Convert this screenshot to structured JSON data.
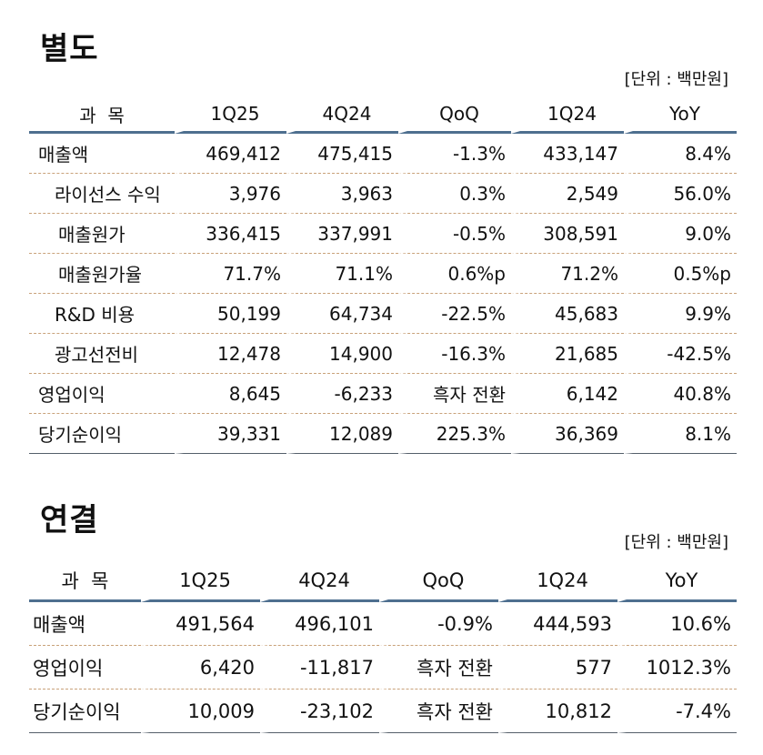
{
  "separate": {
    "title": "별도",
    "unit": "[단위 : 백만원]",
    "headers": [
      "과  목",
      "1Q25",
      "4Q24",
      "QoQ",
      "1Q24",
      "YoY"
    ],
    "rows": [
      {
        "label": "매출액",
        "v1": "469,412",
        "v2": "475,415",
        "qoq": "-1.3%",
        "v3": "433,147",
        "yoy": "8.4%"
      },
      {
        "label": "라이선스 수익",
        "v1": "3,976",
        "v2": "3,963",
        "qoq": "0.3%",
        "v3": "2,549",
        "yoy": "56.0%"
      },
      {
        "label": "매출원가",
        "v1": "336,415",
        "v2": "337,991",
        "qoq": "-0.5%",
        "v3": "308,591",
        "yoy": "9.0%"
      },
      {
        "label": "매출원가율",
        "v1": "71.7%",
        "v2": "71.1%",
        "qoq": "0.6%p",
        "v3": "71.2%",
        "yoy": "0.5%p"
      },
      {
        "label": "R&D 비용",
        "v1": "50,199",
        "v2": "64,734",
        "qoq": "-22.5%",
        "v3": "45,683",
        "yoy": "9.9%"
      },
      {
        "label": "광고선전비",
        "v1": "12,478",
        "v2": "14,900",
        "qoq": "-16.3%",
        "v3": "21,685",
        "yoy": "-42.5%"
      },
      {
        "label": "영업이익",
        "v1": "8,645",
        "v2": "-6,233",
        "qoq": "흑자 전환",
        "v3": "6,142",
        "yoy": "40.8%"
      },
      {
        "label": "당기순이익",
        "v1": "39,331",
        "v2": "12,089",
        "qoq": "225.3%",
        "v3": "36,369",
        "yoy": "8.1%"
      }
    ]
  },
  "consolidated": {
    "title": "연결",
    "unit": "[단위 : 백만원]",
    "headers": [
      "과  목",
      "1Q25",
      "4Q24",
      "QoQ",
      "1Q24",
      "YoY"
    ],
    "rows": [
      {
        "label": "매출액",
        "v1": "491,564",
        "v2": "496,101",
        "qoq": "-0.9%",
        "v3": "444,593",
        "yoy": "10.6%"
      },
      {
        "label": "영업이익",
        "v1": "6,420",
        "v2": "-11,817",
        "qoq": "흑자 전환",
        "v3": "577",
        "yoy": "1012.3%"
      },
      {
        "label": "당기순이익",
        "v1": "10,009",
        "v2": "-23,102",
        "qoq": "흑자 전환",
        "v3": "10,812",
        "yoy": "-7.4%"
      }
    ]
  }
}
